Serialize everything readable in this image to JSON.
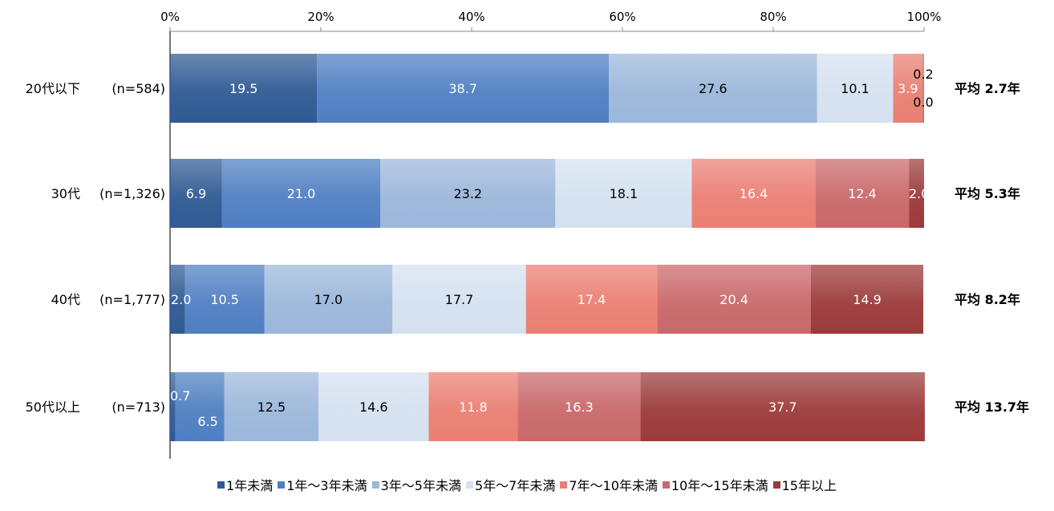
{
  "chart_data": {
    "type": "bar",
    "orientation": "horizontal",
    "stacked": true,
    "xlim": [
      0,
      100
    ],
    "x_tick_labels": [
      "0%",
      "20%",
      "40%",
      "60%",
      "80%",
      "100%"
    ],
    "legend_position": "bottom",
    "categories": [
      "20代以下",
      "30代",
      "40代",
      "50代以上"
    ],
    "sample_sizes": [
      "(n=584)",
      "(n=1,326)",
      "(n=1,777)",
      "(n=713)"
    ],
    "averages": [
      "平均 2.7年",
      "平均 5.3年",
      "平均 8.2年",
      "平均 13.7年"
    ],
    "series": [
      {
        "name": "1年未満",
        "values": [
          19.5,
          6.9,
          2.0,
          0.7
        ],
        "color": "#2f5a94"
      },
      {
        "name": "1年～3年未満",
        "values": [
          38.7,
          21.0,
          10.5,
          6.5
        ],
        "color": "#4f7fc2"
      },
      {
        "name": "3年～5年未満",
        "values": [
          27.6,
          23.2,
          17.0,
          12.5
        ],
        "color": "#9cb7db"
      },
      {
        "name": "5年～7年未満",
        "values": [
          10.1,
          18.1,
          17.7,
          14.6
        ],
        "color": "#d5e1f0"
      },
      {
        "name": "7年～10年未満",
        "values": [
          3.9,
          16.4,
          17.4,
          11.8
        ],
        "color": "#ea7f73"
      },
      {
        "name": "10年～15年未満",
        "values": [
          0.2,
          12.4,
          20.4,
          16.3
        ],
        "color": "#c9686a"
      },
      {
        "name": "15年以上",
        "values": [
          0.0,
          2.0,
          14.9,
          37.7
        ],
        "color": "#9c3a3a"
      }
    ],
    "value_labels": [
      [
        "19.5",
        "38.7",
        "27.6",
        "10.1",
        "3.9",
        "0.2",
        "0.0"
      ],
      [
        "6.9",
        "21.0",
        "23.2",
        "18.1",
        "16.4",
        "12.4",
        "2.0"
      ],
      [
        "2.0",
        "10.5",
        "17.0",
        "17.7",
        "17.4",
        "20.4",
        "14.9"
      ],
      [
        "0.7",
        "6.5",
        "12.5",
        "14.6",
        "11.8",
        "16.3",
        "37.7"
      ]
    ]
  }
}
